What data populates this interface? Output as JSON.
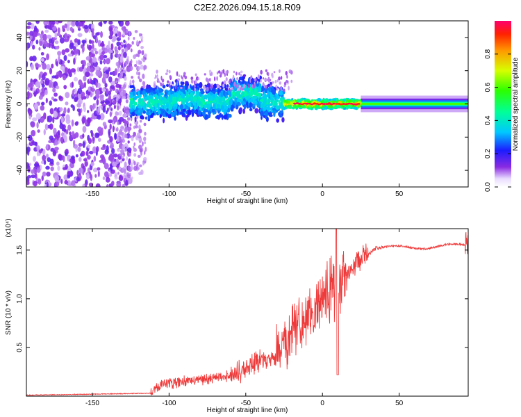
{
  "title": "C2E2.2026.094.15.18.R09",
  "chart_data": [
    {
      "type": "heatmap",
      "xlabel": "Height of straight line (km)",
      "ylabel": "Frequency (Hz)",
      "xlim": [
        -193,
        95
      ],
      "ylim": [
        -50,
        50
      ],
      "xticks": [
        -150,
        -100,
        -50,
        0,
        50
      ],
      "yticks": [
        -40,
        -20,
        0,
        20,
        40
      ],
      "colorbar": {
        "label": "Normalized spectral amplitude",
        "range": [
          0.0,
          1.0
        ],
        "ticks": [
          0.0,
          0.2,
          0.4,
          0.6,
          0.8
        ],
        "tick_labels": [
          "0.0",
          "0.2",
          "0.4",
          "0.6",
          "0.8"
        ]
      },
      "description_bands": [
        {
          "x_range": [
            -193,
            -125
          ],
          "freq_spread": 50,
          "amplitude": 0.1
        },
        {
          "x_range": [
            -125,
            -25
          ],
          "freq_spread": 10,
          "amplitude": 0.35
        },
        {
          "x_range": [
            -25,
            25
          ],
          "freq_spread": 3,
          "amplitude": 0.9
        },
        {
          "x_range": [
            25,
            95
          ],
          "freq_spread": 2,
          "amplitude": 0.55
        }
      ]
    },
    {
      "type": "line",
      "xlabel": "Height of straight line (km)",
      "ylabel": "SNR (10 * v/v)",
      "multiplier": "(x10⁴)",
      "xlim": [
        -193,
        95
      ],
      "ylim": [
        0,
        1.72
      ],
      "xticks": [
        -150,
        -100,
        -50,
        0,
        50
      ],
      "yticks": [
        0.5,
        1.0,
        1.5
      ],
      "ytick_labels": [
        "0.5",
        "1.0",
        "1.5"
      ],
      "color": "#ee3a3a",
      "anchors": [
        {
          "x": -193,
          "y": 0.01
        },
        {
          "x": -112,
          "y": 0.03
        },
        {
          "x": -105,
          "y": 0.12
        },
        {
          "x": -60,
          "y": 0.2
        },
        {
          "x": -30,
          "y": 0.42
        },
        {
          "x": -15,
          "y": 0.7
        },
        {
          "x": 0,
          "y": 0.95
        },
        {
          "x": 15,
          "y": 1.2
        },
        {
          "x": 25,
          "y": 1.4
        },
        {
          "x": 35,
          "y": 1.52
        },
        {
          "x": 60,
          "y": 1.53
        },
        {
          "x": 95,
          "y": 1.55
        }
      ],
      "dip": {
        "x": 10,
        "y": 0.22
      },
      "spike": {
        "x": 9,
        "y": 1.72
      }
    }
  ]
}
